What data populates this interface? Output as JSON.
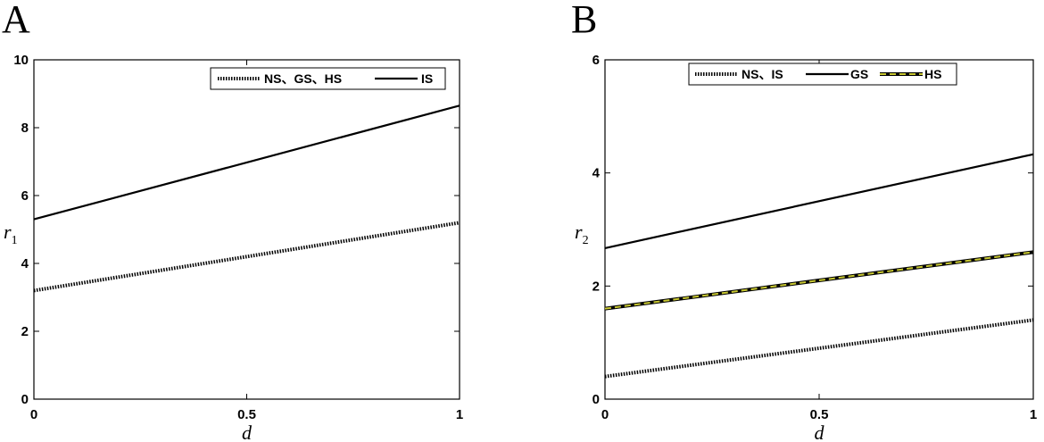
{
  "chart_data": [
    {
      "panel_label": "A",
      "type": "line",
      "xlabel": "d",
      "ylabel": "r",
      "ylabel_sub": "1",
      "xlim": [
        0,
        1
      ],
      "ylim": [
        0,
        10
      ],
      "xticks": [
        "0",
        "0.5",
        "1"
      ],
      "yticks": [
        "0",
        "2",
        "4",
        "6",
        "8",
        "10"
      ],
      "legend_position": "top-right",
      "series": [
        {
          "name": "NS、GS、HS",
          "style": "dotted",
          "color": "#000000",
          "x": [
            0,
            1
          ],
          "y": [
            3.2,
            5.2
          ]
        },
        {
          "name": "IS",
          "style": "solid",
          "color": "#000000",
          "x": [
            0,
            1
          ],
          "y": [
            5.3,
            8.65
          ]
        }
      ]
    },
    {
      "panel_label": "B",
      "type": "line",
      "xlabel": "d",
      "ylabel": "r",
      "ylabel_sub": "2",
      "xlim": [
        0,
        1
      ],
      "ylim": [
        0,
        6
      ],
      "xticks": [
        "0",
        "0.5",
        "1"
      ],
      "yticks": [
        "0",
        "2",
        "4",
        "6"
      ],
      "legend_position": "top-right",
      "series": [
        {
          "name": "NS、IS",
          "style": "dotted",
          "color": "#000000",
          "x": [
            0,
            1
          ],
          "y": [
            0.4,
            1.4
          ]
        },
        {
          "name": "GS",
          "style": "solid",
          "color": "#000000",
          "x": [
            0,
            1
          ],
          "y": [
            2.67,
            4.33
          ]
        },
        {
          "name": "HS",
          "style": "dashed",
          "color": "#c8c832",
          "x": [
            0,
            1
          ],
          "y": [
            1.6,
            2.6
          ]
        }
      ]
    }
  ]
}
